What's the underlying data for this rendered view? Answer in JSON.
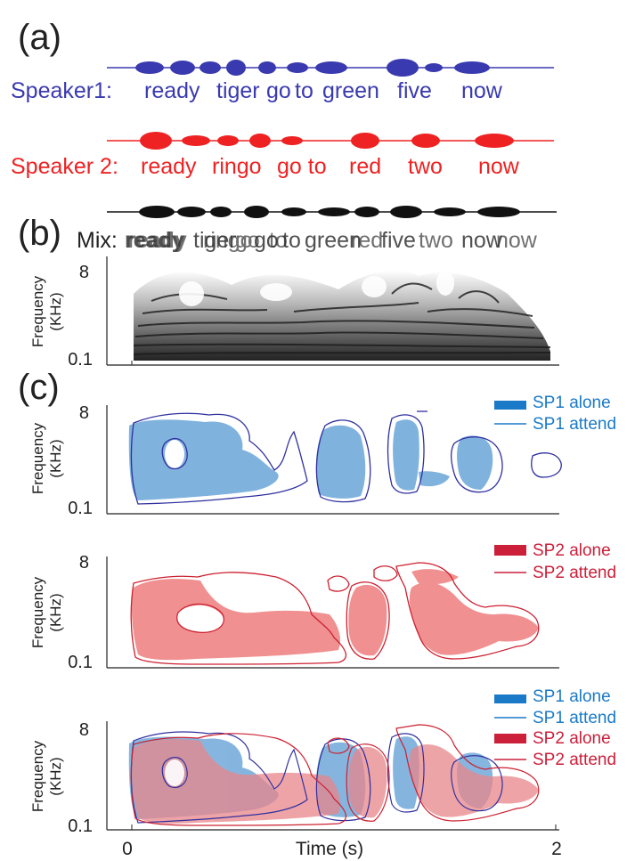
{
  "panel_labels": {
    "a": "(a)",
    "b": "(b)",
    "c": "(c)"
  },
  "speaker1": {
    "label": "Speaker1:",
    "words": [
      "ready",
      "tiger",
      "go",
      "to",
      "green",
      "five",
      "now"
    ],
    "color": "#3a3ab0"
  },
  "speaker2": {
    "label": "Speaker 2:",
    "words": [
      "ready",
      "ringo",
      "go to",
      "red",
      "two",
      "now"
    ],
    "color": "#ee2222"
  },
  "mix": {
    "label": "Mix:",
    "overlay_a": [
      "ready",
      "tiger",
      "go",
      "to",
      "green",
      "five",
      "now"
    ],
    "overlay_b": [
      "ready",
      "ringo",
      "go",
      "to",
      "red",
      "two",
      "now"
    ],
    "color": "#222222"
  },
  "axes": {
    "ylabel_line1": "Frequency",
    "ylabel_line2": "(KHz)",
    "y_top": "8",
    "y_bottom": "0.1",
    "x_start": "0",
    "x_end": "2",
    "xlabel": "Time (s)"
  },
  "legend": {
    "sp1_alone": "SP1 alone",
    "sp1_attend": "SP1 attend",
    "sp2_alone": "SP2 alone",
    "sp2_attend": "SP2 attend"
  },
  "colors": {
    "sp1_fill": "#7fb2dd",
    "sp1_line": "#3030a0",
    "sp1_legend": "#1a7ac8",
    "sp2_fill": "#f09090",
    "sp2_line": "#cc2030",
    "sp2_legend": "#cc1f3a"
  }
}
